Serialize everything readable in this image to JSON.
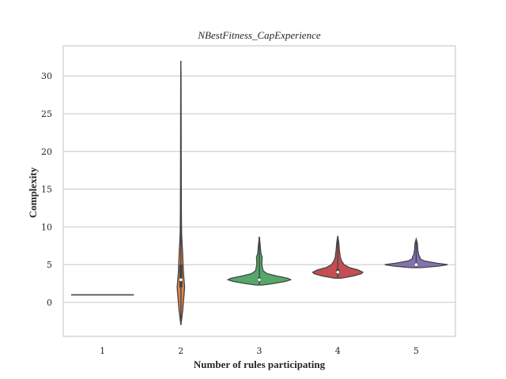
{
  "chart_data": {
    "type": "violin",
    "title": "NBestFitness_CapExperience",
    "xlabel": "Number of rules participating",
    "ylabel": "Complexity",
    "categories": [
      "1",
      "2",
      "3",
      "4",
      "5"
    ],
    "ylim": [
      -4.5,
      34
    ],
    "yticks": [
      0,
      5,
      10,
      15,
      20,
      25,
      30
    ],
    "grid": "horizontal",
    "colors": [
      "#4c72b0",
      "#dd8452",
      "#55a868",
      "#c44e52",
      "#8172b3"
    ],
    "violins": [
      {
        "category": "1",
        "min": 1,
        "max": 1,
        "median": 1,
        "q1": 1,
        "q3": 1,
        "profile": [
          [
            1,
            1.0
          ]
        ]
      },
      {
        "category": "2",
        "min": -3,
        "max": 32,
        "median": 3,
        "q1": 2,
        "q3": 5,
        "profile": [
          [
            -3,
            0.0
          ],
          [
            -1,
            0.06
          ],
          [
            0,
            0.08
          ],
          [
            1,
            0.1
          ],
          [
            2,
            0.12
          ],
          [
            3,
            0.1
          ],
          [
            4,
            0.08
          ],
          [
            5,
            0.07
          ],
          [
            6,
            0.06
          ],
          [
            7,
            0.05
          ],
          [
            8,
            0.035
          ],
          [
            9,
            0.025
          ],
          [
            10,
            0.02
          ],
          [
            12,
            0.016
          ],
          [
            15,
            0.013
          ],
          [
            20,
            0.01
          ],
          [
            25,
            0.008
          ],
          [
            30,
            0.005
          ],
          [
            32,
            0.0
          ]
        ]
      },
      {
        "category": "3",
        "min": 2.3,
        "max": 8.7,
        "median": 3,
        "q1": 2.8,
        "q3": 3.3,
        "profile": [
          [
            2.3,
            0.1
          ],
          [
            2.5,
            0.45
          ],
          [
            2.8,
            0.85
          ],
          [
            3.0,
            1.0
          ],
          [
            3.2,
            0.9
          ],
          [
            3.5,
            0.55
          ],
          [
            3.8,
            0.25
          ],
          [
            4.2,
            0.12
          ],
          [
            5.0,
            0.08
          ],
          [
            6.0,
            0.09
          ],
          [
            6.5,
            0.05
          ],
          [
            7.5,
            0.03
          ],
          [
            8.7,
            0.0
          ]
        ]
      },
      {
        "category": "4",
        "min": 3.2,
        "max": 8.8,
        "median": 4,
        "q1": 3.7,
        "q3": 4.4,
        "profile": [
          [
            3.2,
            0.1
          ],
          [
            3.5,
            0.5
          ],
          [
            3.8,
            0.75
          ],
          [
            4.0,
            0.8
          ],
          [
            4.3,
            0.65
          ],
          [
            4.6,
            0.38
          ],
          [
            5.0,
            0.2
          ],
          [
            5.5,
            0.12
          ],
          [
            6.0,
            0.08
          ],
          [
            7.0,
            0.05
          ],
          [
            8.0,
            0.03
          ],
          [
            8.8,
            0.0
          ]
        ]
      },
      {
        "category": "5",
        "min": 4.6,
        "max": 8.4,
        "median": 5,
        "q1": 4.9,
        "q3": 5.2,
        "profile": [
          [
            4.6,
            0.15
          ],
          [
            4.8,
            0.7
          ],
          [
            5.0,
            1.0
          ],
          [
            5.2,
            0.65
          ],
          [
            5.5,
            0.25
          ],
          [
            5.8,
            0.12
          ],
          [
            6.0,
            0.12
          ],
          [
            6.3,
            0.08
          ],
          [
            7.0,
            0.05
          ],
          [
            7.8,
            0.04
          ],
          [
            8.4,
            0.0
          ]
        ]
      }
    ]
  }
}
